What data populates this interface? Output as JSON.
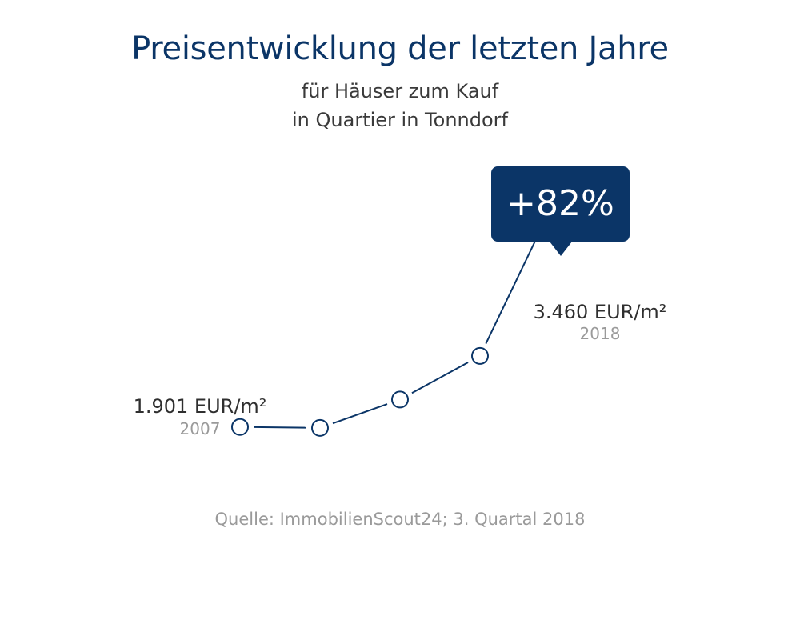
{
  "chart_data": {
    "type": "line",
    "title": "Preisentwicklung der letzten Jahre",
    "subtitle_line1": "für Häuser zum Kauf",
    "subtitle_line2": "in Quartier in Tonndorf",
    "y_unit": "EUR/m²",
    "points": [
      1901,
      1895,
      2081,
      2367,
      3460
    ],
    "ylim": [
      1700,
      3600
    ],
    "start": {
      "value_label": "1.901 EUR/m²",
      "year": "2007"
    },
    "end": {
      "value_label": "3.460 EUR/m²",
      "year": "2018"
    },
    "change_label": "+82%",
    "source": "Quelle: ImmobilienScout24; 3. Quartal 2018"
  },
  "colors": {
    "primary": "#0b3567",
    "text": "#2f2f2f",
    "muted": "#9a9a9a"
  }
}
